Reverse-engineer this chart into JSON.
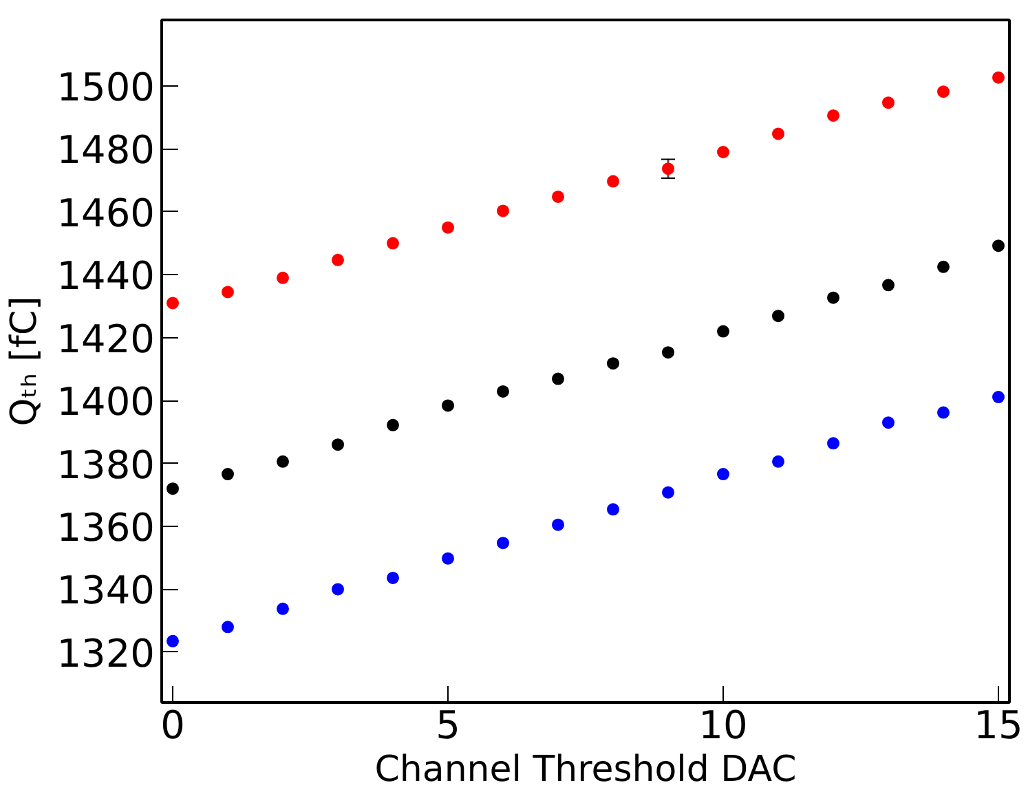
{
  "chart_data": {
    "type": "scatter",
    "xlabel": "Channel Threshold DAC",
    "ylabel": "Qₜₕ [fC]",
    "x": [
      0,
      1,
      2,
      3,
      4,
      5,
      6,
      7,
      8,
      9,
      10,
      11,
      12,
      13,
      14,
      15
    ],
    "series": [
      {
        "color": "#ff0000",
        "values": [
          1431,
          1434.5,
          1439,
          1444.7,
          1450,
          1455,
          1460.3,
          1464.8,
          1469.7,
          1473.7,
          1479,
          1484.8,
          1490.6,
          1494.7,
          1498.2,
          1502.7
        ],
        "errors": [
          null,
          null,
          null,
          null,
          null,
          null,
          null,
          null,
          null,
          3,
          null,
          null,
          null,
          null,
          null,
          null
        ]
      },
      {
        "color": "#000000",
        "values": [
          1372,
          1376.6,
          1380.6,
          1386,
          1392.2,
          1398.4,
          1402.9,
          1406.9,
          1411.8,
          1415.3,
          1422,
          1426.9,
          1432.7,
          1436.7,
          1442.5,
          1449.2
        ]
      },
      {
        "color": "#0000ff",
        "values": [
          1323.5,
          1328,
          1333.8,
          1340,
          1343.6,
          1349.8,
          1354.7,
          1360.5,
          1365.4,
          1370.8,
          1376.6,
          1380.6,
          1386.4,
          1393,
          1396.2,
          1401.1
        ]
      }
    ],
    "xlim": [
      -0.2,
      15.2
    ],
    "ylim": [
      1304,
      1521
    ],
    "xticks": [
      0,
      5,
      10,
      15
    ],
    "yticks": [
      1320,
      1340,
      1360,
      1380,
      1400,
      1420,
      1440,
      1460,
      1480,
      1500
    ],
    "marker": "circle",
    "grid": false
  }
}
